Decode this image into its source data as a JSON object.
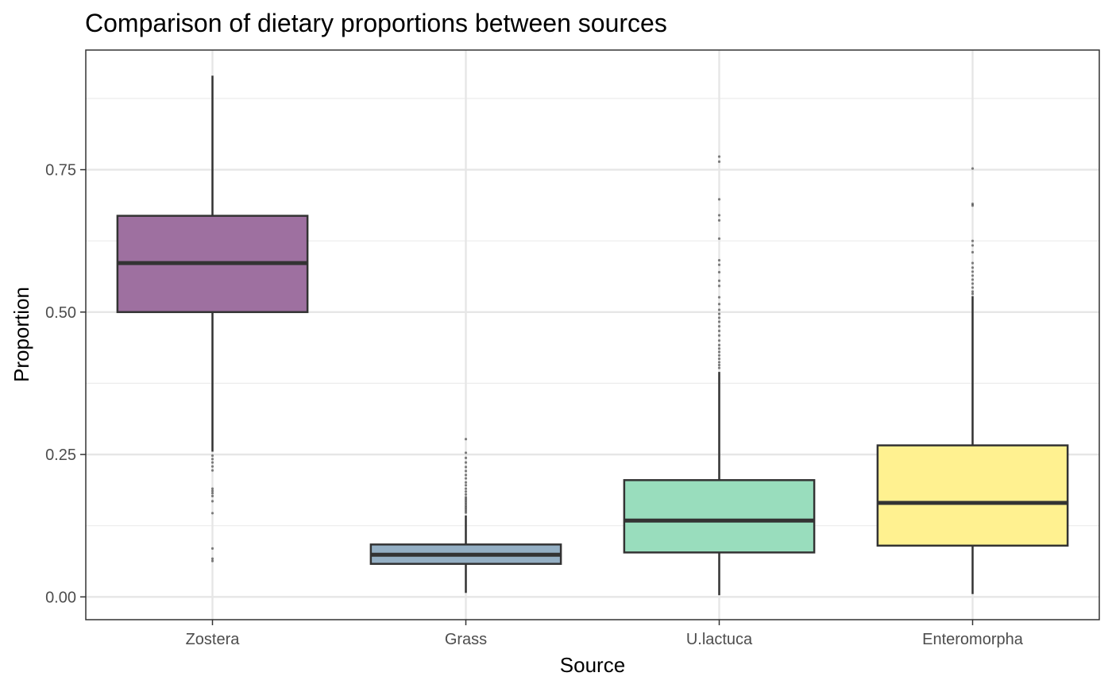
{
  "chart_data": {
    "type": "boxplot",
    "title": "Comparison of dietary proportions between sources",
    "xlabel": "Source",
    "ylabel": "Proportion",
    "ylim": [
      -0.04,
      0.96
    ],
    "yticks": [
      0.0,
      0.25,
      0.5,
      0.75
    ],
    "ytick_labels": [
      "0.00",
      "0.25",
      "0.50",
      "0.75"
    ],
    "minor_yticks": [
      0.125,
      0.375,
      0.625,
      0.875
    ],
    "grid": true,
    "legend": "none",
    "categories": [
      "Zostera",
      "Grass",
      "U.lactuca",
      "Enteromorpha"
    ],
    "boxes": [
      {
        "category": "Zostera",
        "color": "#9E70A0",
        "whisker_low": 0.255,
        "q1": 0.5,
        "median": 0.586,
        "q3": 0.669,
        "whisker_high": 0.915,
        "outliers": [
          0.248,
          0.242,
          0.236,
          0.229,
          0.222,
          0.19,
          0.186,
          0.182,
          0.177,
          0.168,
          0.147,
          0.085,
          0.067,
          0.063
        ]
      },
      {
        "category": "Grass",
        "color": "#94AFC4",
        "whisker_low": 0.007,
        "q1": 0.058,
        "median": 0.074,
        "q3": 0.092,
        "whisker_high": 0.143,
        "outliers": [
          0.277,
          0.253,
          0.244,
          0.236,
          0.228,
          0.221,
          0.214,
          0.208,
          0.201,
          0.196,
          0.19,
          0.185,
          0.18,
          0.175,
          0.172,
          0.169,
          0.166,
          0.163,
          0.16,
          0.157,
          0.154,
          0.151,
          0.148
        ]
      },
      {
        "category": "U.lactuca",
        "color": "#99DDBD",
        "whisker_low": 0.003,
        "q1": 0.078,
        "median": 0.134,
        "q3": 0.205,
        "whisker_high": 0.395,
        "outliers": [
          0.773,
          0.764,
          0.698,
          0.67,
          0.661,
          0.629,
          0.591,
          0.583,
          0.57,
          0.555,
          0.546,
          0.526,
          0.514,
          0.504,
          0.497,
          0.49,
          0.483,
          0.475,
          0.467,
          0.459,
          0.45,
          0.442,
          0.436,
          0.43,
          0.424,
          0.418,
          0.412,
          0.407,
          0.402
        ]
      },
      {
        "category": "Enteromorpha",
        "color": "#FFF190",
        "whisker_low": 0.005,
        "q1": 0.09,
        "median": 0.165,
        "q3": 0.266,
        "whisker_high": 0.528,
        "outliers": [
          0.752,
          0.69,
          0.687,
          0.625,
          0.617,
          0.605,
          0.586,
          0.578,
          0.571,
          0.564,
          0.557,
          0.55,
          0.543,
          0.536,
          0.532
        ]
      }
    ]
  }
}
